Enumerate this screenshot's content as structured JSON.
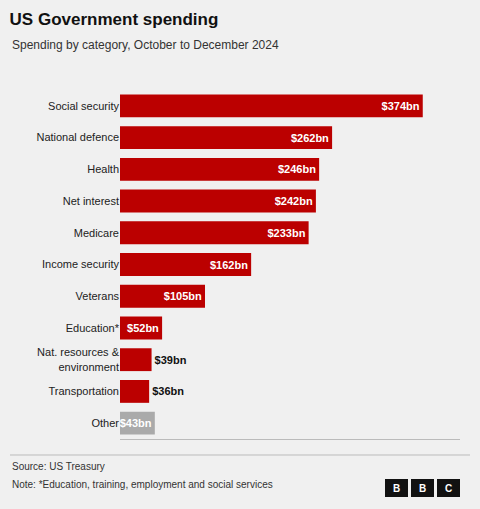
{
  "chart_data": {
    "type": "bar",
    "orientation": "horizontal",
    "title": "US Government spending",
    "subtitle": "Spending by category, October to December 2024",
    "source": "Source: US Treasury",
    "note": "Note: *Education, training, employment and social services",
    "annotations": [
      "B",
      "B",
      "C"
    ],
    "categories": [
      "Social security",
      "National defence",
      "Health",
      "Net interest",
      "Medicare",
      "Income security",
      "Veterans",
      "Education*",
      "Nat. resources &\nenvironment",
      "Transportation",
      "Other"
    ],
    "values": [
      374,
      262,
      246,
      242,
      233,
      162,
      105,
      52,
      39,
      36,
      43
    ],
    "value_labels": [
      "$374bn",
      "$262bn",
      "$246bn",
      "$242bn",
      "$233bn",
      "$162bn",
      "$105bn",
      "$52bn",
      "$39bn",
      "$36bn",
      "$43bn"
    ],
    "colors": [
      "#bb0000",
      "#bb0000",
      "#bb0000",
      "#bb0000",
      "#bb0000",
      "#bb0000",
      "#bb0000",
      "#bb0000",
      "#bb0000",
      "#bb0000",
      "#aaaaaa"
    ],
    "xlim": [
      0,
      420
    ],
    "data_labels": true,
    "tick_labels": "y",
    "grid": false
  }
}
